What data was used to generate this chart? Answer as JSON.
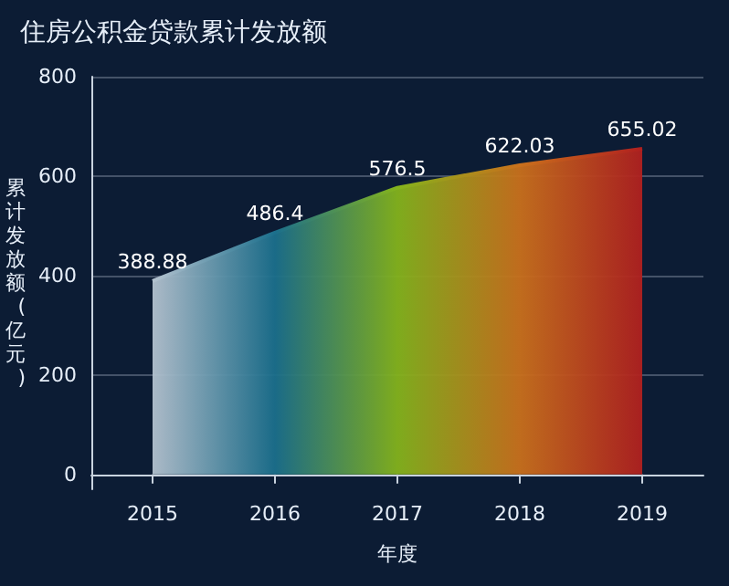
{
  "chart_data": {
    "type": "area",
    "title": "住房公积金贷款累计发放额",
    "xlabel": "年度",
    "ylabel": "累计发放额(亿元)",
    "categories": [
      "2015",
      "2016",
      "2017",
      "2018",
      "2019"
    ],
    "series": [
      {
        "colors": [
          "#b4c2cf",
          "#1b6f8c",
          "#84b31c",
          "#c9701c",
          "#b0201f"
        ],
        "values": [
          388.88,
          486.4,
          576.5,
          622.03,
          655.02
        ]
      }
    ],
    "ylim": [
      -30,
      800
    ],
    "yticks": [
      0,
      200,
      400,
      600,
      800
    ],
    "grid": "y",
    "data_labels": true,
    "marker": "none"
  }
}
